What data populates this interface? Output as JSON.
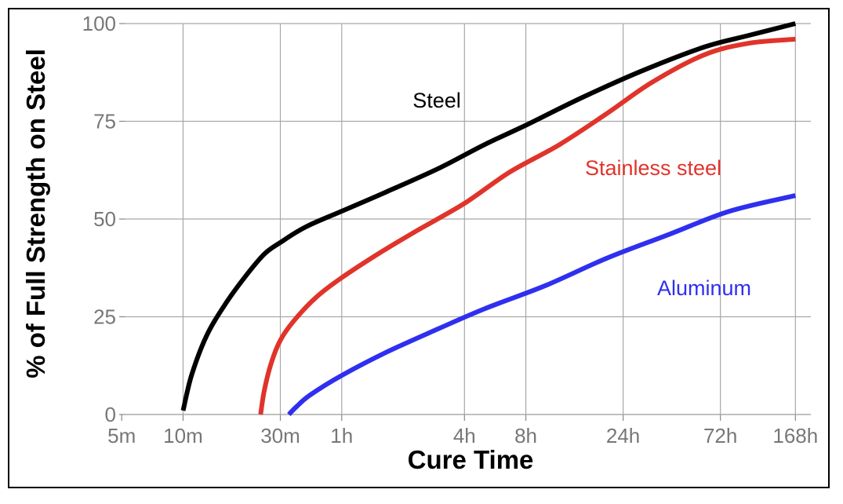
{
  "chart_data": {
    "type": "line",
    "xlabel": "Cure Time",
    "ylabel": "% of Full Strength on Steel",
    "x_scale": "log",
    "x_unit": "minutes",
    "xlim": [
      4,
      12000
    ],
    "ylim": [
      0,
      100
    ],
    "x_ticks": [
      {
        "value": 5,
        "label": "5m"
      },
      {
        "value": 10,
        "label": "10m"
      },
      {
        "value": 30,
        "label": "30m"
      },
      {
        "value": 60,
        "label": "1h"
      },
      {
        "value": 240,
        "label": "4h"
      },
      {
        "value": 480,
        "label": "8h"
      },
      {
        "value": 1440,
        "label": "24h"
      },
      {
        "value": 4320,
        "label": "72h"
      },
      {
        "value": 10080,
        "label": "168h"
      }
    ],
    "y_ticks": [
      {
        "value": 0,
        "label": "0"
      },
      {
        "value": 25,
        "label": "25"
      },
      {
        "value": 50,
        "label": "50"
      },
      {
        "value": 75,
        "label": "75"
      },
      {
        "value": 100,
        "label": "100"
      }
    ],
    "grid": true,
    "series": [
      {
        "name": "Steel",
        "color": "#000000",
        "x": [
          10,
          11,
          13,
          16,
          20,
          25,
          30,
          40,
          60,
          100,
          180,
          300,
          480,
          900,
          1800,
          3600,
          6000,
          10080
        ],
        "y": [
          1,
          10,
          20,
          28,
          35,
          41,
          44,
          48,
          52,
          57,
          63,
          69,
          74,
          81,
          88,
          94,
          97,
          100
        ]
      },
      {
        "name": "Stainless steel",
        "color": "#e0342b",
        "x": [
          24,
          25,
          27,
          30,
          35,
          45,
          60,
          90,
          140,
          240,
          400,
          700,
          1200,
          2000,
          3600,
          6000,
          10080
        ],
        "y": [
          0,
          6,
          13,
          19,
          24,
          30,
          35,
          41,
          47,
          54,
          62,
          69,
          77,
          85,
          92,
          95,
          96
        ]
      },
      {
        "name": "Aluminum",
        "color": "#2f2ff0",
        "x": [
          33,
          36,
          42,
          60,
          100,
          180,
          300,
          600,
          1200,
          2400,
          4800,
          10080
        ],
        "y": [
          0,
          2,
          5,
          10,
          16,
          22,
          27,
          33,
          40,
          46,
          52,
          56
        ]
      }
    ]
  }
}
